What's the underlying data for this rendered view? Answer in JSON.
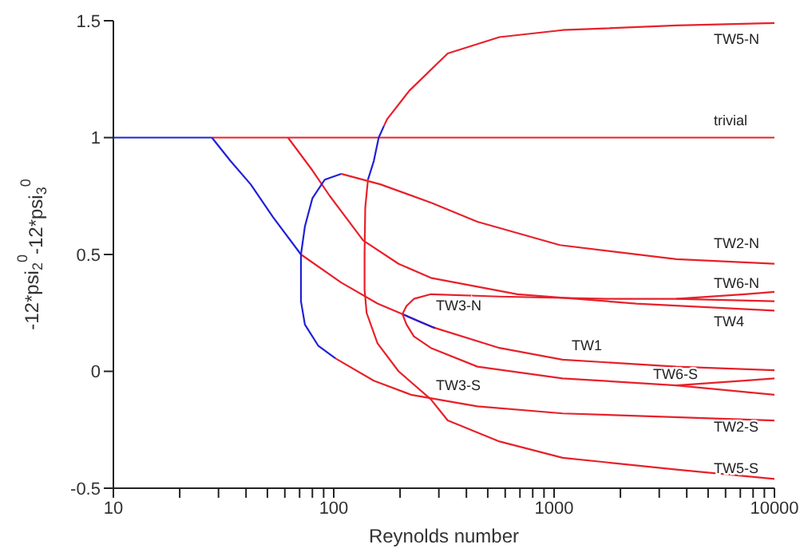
{
  "chart_data": {
    "type": "line",
    "xlabel": "Reynolds number",
    "ylabel": "-12*psi$_{2}$$^{0}$-12*psi$_{3}$$^{0}$",
    "log": "x",
    "xlim": [
      10,
      10000
    ],
    "ylim": [
      -0.5,
      1.5
    ],
    "xticks": [
      10,
      {
        "value": 20,
        "label": null
      },
      {
        "value": 30,
        "label": null
      },
      {
        "value": 40,
        "label": null
      },
      {
        "value": 50,
        "label": null
      },
      {
        "value": 60,
        "label": null
      },
      {
        "value": 70,
        "label": null
      },
      {
        "value": 80,
        "label": null
      },
      {
        "value": 90,
        "label": null
      },
      100,
      {
        "value": 200,
        "label": null
      },
      {
        "value": 300,
        "label": null
      },
      {
        "value": 400,
        "label": null
      },
      {
        "value": 500,
        "label": null
      },
      {
        "value": 600,
        "label": null
      },
      {
        "value": 700,
        "label": null
      },
      {
        "value": 800,
        "label": null
      },
      {
        "value": 900,
        "label": null
      },
      1000,
      {
        "value": 2000,
        "label": null
      },
      {
        "value": 3000,
        "label": null
      },
      {
        "value": 4000,
        "label": null
      },
      {
        "value": 5000,
        "label": null
      },
      {
        "value": 6000,
        "label": null
      },
      {
        "value": 7000,
        "label": null
      },
      {
        "value": 8000,
        "label": null
      },
      {
        "value": 9000,
        "label": null
      },
      10000
    ],
    "yticks": [
      -0.5,
      0,
      0.5,
      1,
      1.5
    ],
    "series": [
      {
        "color": "#e8202a",
        "x": [
          28,
          100,
          1000,
          10000
        ],
        "values": [
          1,
          1,
          1,
          1
        ]
      },
      {
        "color": "#2020d8",
        "x": [
          10,
          15,
          20,
          28
        ],
        "values": [
          1,
          1,
          1,
          1
        ]
      },
      {
        "color": "#2020d8",
        "x": [
          28,
          34,
          42,
          53,
          71
        ],
        "values": [
          1,
          0.9,
          0.8,
          0.66,
          0.5
        ]
      },
      {
        "color": "#e8202a",
        "x": [
          71,
          108,
          158,
          205,
          279,
          565,
          1093,
          3585,
          10000
        ],
        "values": [
          0.5,
          0.38,
          0.29,
          0.245,
          0.19,
          0.1,
          0.05,
          0.02,
          0.005
        ]
      },
      {
        "color": "#2020d8",
        "x": [
          205,
          242,
          288
        ],
        "values": [
          0.245,
          0.215,
          0.185
        ]
      },
      {
        "color": "#e8202a",
        "x": [
          62,
          80,
          96,
          136,
          197,
          276,
          682,
          2360,
          10000
        ],
        "values": [
          1,
          0.86,
          0.75,
          0.56,
          0.46,
          0.4,
          0.33,
          0.29,
          0.26
        ]
      },
      {
        "color": "#e8202a",
        "x": [
          205,
          214,
          231,
          276,
          565,
          1754,
          3585,
          10000
        ],
        "values": [
          0.245,
          0.28,
          0.31,
          0.33,
          0.32,
          0.31,
          0.31,
          0.3
        ]
      },
      {
        "color": "#e8202a",
        "x": [
          3585,
          7328,
          10000
        ],
        "values": [
          0.31,
          0.33,
          0.34
        ]
      },
      {
        "color": "#e8202a",
        "x": [
          205,
          214,
          231,
          276,
          449,
          1093,
          3585,
          10000
        ],
        "values": [
          0.245,
          0.2,
          0.15,
          0.1,
          0.02,
          -0.03,
          -0.06,
          -0.1
        ]
      },
      {
        "color": "#e8202a",
        "x": [
          3585,
          7328,
          10000
        ],
        "values": [
          -0.06,
          -0.04,
          -0.03
        ]
      },
      {
        "color": "#e8202a",
        "x": [
          108,
          163,
          279,
          449,
          1063,
          3585,
          10000
        ],
        "values": [
          0.845,
          0.8,
          0.72,
          0.64,
          0.54,
          0.48,
          0.46
        ]
      },
      {
        "color": "#2020d8",
        "x": [
          108,
          91,
          80,
          74,
          71,
          71,
          71,
          74,
          85,
          102
        ],
        "values": [
          0.845,
          0.82,
          0.74,
          0.62,
          0.5,
          0.4,
          0.3,
          0.2,
          0.11,
          0.055
        ]
      },
      {
        "color": "#e8202a",
        "x": [
          102,
          152,
          224,
          449,
          1093,
          10000
        ],
        "values": [
          0.055,
          -0.04,
          -0.1,
          -0.15,
          -0.18,
          -0.21
        ]
      },
      {
        "color": "#e8202a",
        "x": [
          10000,
          3585,
          1093,
          565,
          329,
          220,
          175,
          169
        ],
        "values": [
          1.49,
          1.48,
          1.46,
          1.43,
          1.36,
          1.2,
          1.08,
          1.05
        ]
      },
      {
        "color": "#2020d8",
        "x": [
          169,
          160,
          152,
          143
        ],
        "values": [
          1.05,
          1,
          0.9,
          0.82
        ]
      },
      {
        "color": "#e8202a",
        "x": [
          143,
          139,
          138,
          138,
          141,
          158,
          197,
          276,
          329,
          565,
          1093,
          3585,
          10000
        ],
        "values": [
          0.82,
          0.7,
          0.5,
          0.35,
          0.25,
          0.12,
          0,
          -0.12,
          -0.21,
          -0.3,
          -0.37,
          -0.42,
          -0.46
        ]
      }
    ],
    "annotations": [
      "TW5-N",
      "trivial",
      "TW2-N",
      "TW6-N",
      "TW4",
      "TW3-N",
      "TW1",
      "TW3-S",
      "TW6-S",
      "TW2-S",
      "TW5-S"
    ]
  }
}
